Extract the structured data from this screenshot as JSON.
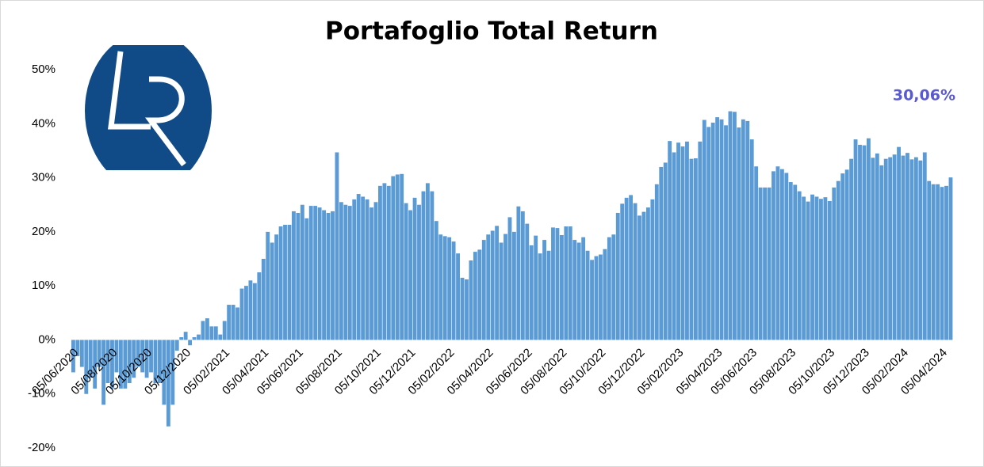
{
  "chart_data": {
    "type": "bar",
    "title": "Portafoglio Total Return",
    "annotation": "30,06%",
    "color": "#5b9bd5",
    "annotation_color": "#5a5ad0",
    "grid": false,
    "ylim": [
      -20,
      50
    ],
    "yticks": [
      {
        "value": -20,
        "label": "-20%"
      },
      {
        "value": -10,
        "label": "-10%"
      },
      {
        "value": 0,
        "label": "0%"
      },
      {
        "value": 10,
        "label": "10%"
      },
      {
        "value": 20,
        "label": "20%"
      },
      {
        "value": 30,
        "label": "30%"
      },
      {
        "value": 40,
        "label": "40%"
      },
      {
        "value": 50,
        "label": "50%"
      }
    ],
    "categories": [
      "05/06/2020",
      null,
      null,
      null,
      null,
      null,
      null,
      null,
      null,
      "05/08/2020",
      null,
      null,
      null,
      null,
      null,
      null,
      null,
      "05/10/2020",
      null,
      null,
      null,
      null,
      null,
      null,
      null,
      null,
      "05/12/2020",
      null,
      null,
      null,
      null,
      null,
      null,
      null,
      null,
      "05/02/2021",
      null,
      null,
      null,
      null,
      null,
      null,
      null,
      null,
      "05/04/2021",
      null,
      null,
      null,
      null,
      null,
      null,
      null,
      "05/06/2021",
      null,
      null,
      null,
      null,
      null,
      null,
      null,
      null,
      "05/08/2021",
      null,
      null,
      null,
      null,
      null,
      null,
      null,
      null,
      "05/10/2021",
      null,
      null,
      null,
      null,
      null,
      null,
      null,
      "05/12/2021",
      null,
      null,
      null,
      null,
      null,
      null,
      null,
      null,
      "05/02/2022",
      null,
      null,
      null,
      null,
      null,
      null,
      null,
      null,
      "05/04/2022",
      null,
      null,
      null,
      null,
      null,
      null,
      null,
      null,
      "05/06/2022",
      null,
      null,
      null,
      null,
      null,
      null,
      null,
      "05/08/2022",
      null,
      null,
      null,
      null,
      null,
      null,
      null,
      null,
      "05/10/2022",
      null,
      null,
      null,
      null,
      null,
      null,
      null,
      null,
      "05/12/2022",
      null,
      null,
      null,
      null,
      null,
      null,
      null,
      null,
      "05/02/2023",
      null,
      null,
      null,
      null,
      null,
      null,
      null,
      null,
      "05/04/2023",
      null,
      null,
      null,
      null,
      null,
      null,
      null,
      "05/06/2023",
      null,
      null,
      null,
      null,
      null,
      null,
      null,
      null,
      "05/08/2023",
      null,
      null,
      null,
      null,
      null,
      null,
      null,
      null,
      "05/10/2023",
      null,
      null,
      null,
      null,
      null,
      null,
      null,
      "05/12/2023",
      null,
      null,
      null,
      null,
      null,
      null,
      null,
      null,
      "05/02/2024",
      null,
      null,
      null,
      null,
      null,
      null,
      null,
      null,
      "05/04/2024",
      null,
      null
    ],
    "values": [
      -6,
      -3,
      -5,
      -10,
      -7,
      -9,
      -5,
      -12,
      -8,
      -9,
      -6,
      -9,
      -9,
      -8,
      -7,
      -5,
      -6,
      -7,
      -6,
      -8,
      -8,
      -12,
      -16,
      -12,
      -2,
      0.5,
      1.5,
      -1,
      0.5,
      1,
      3.5,
      4,
      2.5,
      2.5,
      1,
      3.5,
      6.5,
      6.5,
      6,
      9.5,
      10,
      11,
      10.5,
      12.5,
      15,
      20,
      18,
      19.5,
      21,
      21.3,
      21.3,
      23.8,
      23.5,
      25,
      22.5,
      24.8,
      24.8,
      24.5,
      24,
      23.5,
      23.8,
      34.7,
      25.5,
      25,
      24.8,
      26,
      27,
      26.5,
      26,
      24.5,
      25.5,
      28.5,
      29,
      28.5,
      30.3,
      30.6,
      30.7,
      25.3,
      24,
      26.3,
      25,
      27.5,
      29,
      27.5,
      22,
      19.5,
      19.2,
      19,
      18.2,
      16,
      11.5,
      11.2,
      14.7,
      16.3,
      16.7,
      18.5,
      19.5,
      20.2,
      21.1,
      18,
      19.6,
      22.7,
      20,
      24.7,
      23.8,
      21.5,
      17.5,
      19.3,
      16,
      18.5,
      16.5,
      20.8,
      20.7,
      19.4,
      21,
      21,
      18.5,
      18,
      19,
      16.5,
      14.8,
      15.5,
      15.8,
      16.8,
      19,
      19.5,
      23.5,
      25.2,
      26.3,
      26.8,
      25.3,
      23,
      23.7,
      24.5,
      26,
      28.8,
      32,
      32.8,
      36.8,
      34.7,
      36.5,
      35.8,
      36.7,
      33.5,
      33.6,
      36.7,
      40.7,
      39.4,
      40.2,
      41.2,
      40.8,
      39.7,
      42.3,
      42.2,
      39.3,
      40.8,
      40.5,
      37.1,
      32.1,
      28.2,
      28.2,
      28.2,
      31.2,
      32.1,
      31.6,
      30.9,
      29.2,
      28.7,
      27.5,
      26.5,
      25.6,
      26.9,
      26.5,
      26.1,
      26.4,
      25.7,
      28.2,
      29.4,
      30.8,
      31.5,
      33.5,
      37.1,
      36.1,
      36,
      37.3,
      33.7,
      34.5,
      32.3,
      33.5,
      33.8,
      34.3,
      35.7,
      34.1,
      34.6,
      33.4,
      33.8,
      33.2,
      34.7,
      29.4,
      28.8,
      28.8,
      28.3,
      28.5,
      30.06
    ]
  }
}
